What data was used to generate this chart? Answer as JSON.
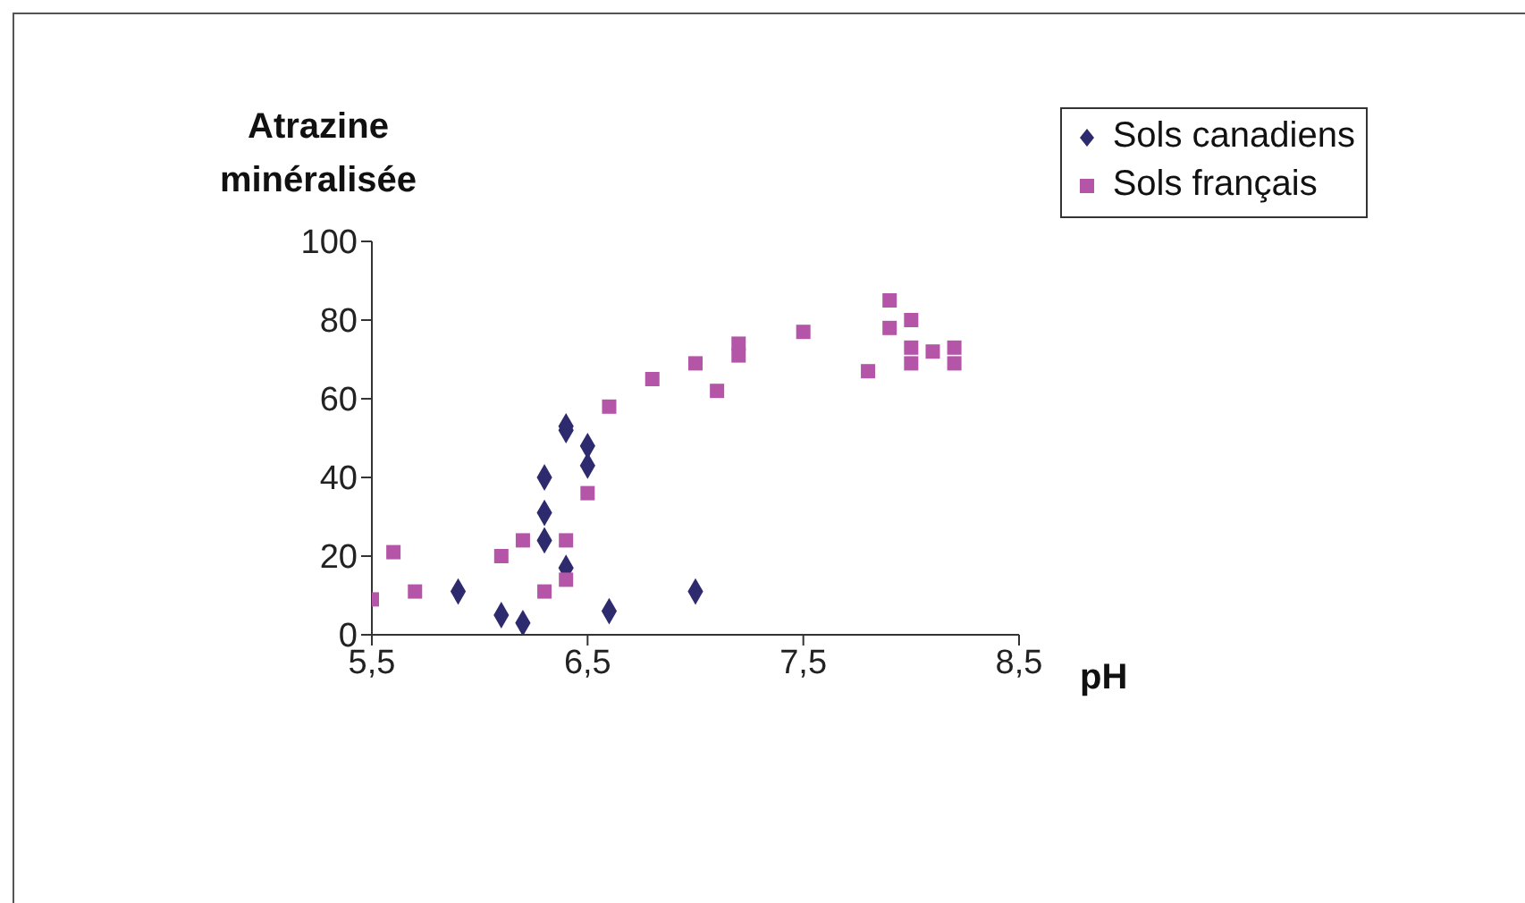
{
  "chart_data": {
    "type": "scatter",
    "xlabel": "pH",
    "ylabel": "Atrazine\nminéralisée",
    "xlim": [
      5.5,
      8.5
    ],
    "ylim": [
      0,
      100
    ],
    "xticks": [
      {
        "value": 5.5,
        "label": "5,5"
      },
      {
        "value": 6.5,
        "label": "6,5"
      },
      {
        "value": 7.5,
        "label": "7,5"
      },
      {
        "value": 8.5,
        "label": "8,5"
      }
    ],
    "yticks": [
      0,
      20,
      40,
      60,
      80,
      100
    ],
    "grid": false,
    "legend": "top right",
    "series": [
      {
        "name": "Sols canadiens",
        "color": "#2e2a6e",
        "marker": "diamond",
        "x": [
          5.9,
          6.1,
          6.2,
          6.3,
          6.3,
          6.3,
          6.4,
          6.4,
          6.4,
          6.5,
          6.5,
          6.6,
          7.0
        ],
        "values": [
          11,
          5,
          3,
          40,
          31,
          24,
          53,
          52,
          17,
          48,
          43,
          6,
          11
        ]
      },
      {
        "name": "Sols français",
        "color": "#b455a8",
        "marker": "square",
        "x": [
          5.5,
          5.6,
          5.7,
          6.1,
          6.2,
          6.3,
          6.4,
          6.4,
          6.5,
          6.6,
          6.8,
          7.0,
          7.1,
          7.2,
          7.2,
          7.5,
          7.8,
          7.9,
          7.9,
          8.0,
          8.0,
          8.0,
          8.1,
          8.2,
          8.2
        ],
        "values": [
          9,
          21,
          11,
          20,
          24,
          11,
          24,
          14,
          36,
          58,
          65,
          69,
          62,
          74,
          71,
          77,
          67,
          85,
          78,
          80,
          73,
          69,
          72,
          73,
          69
        ]
      }
    ]
  }
}
